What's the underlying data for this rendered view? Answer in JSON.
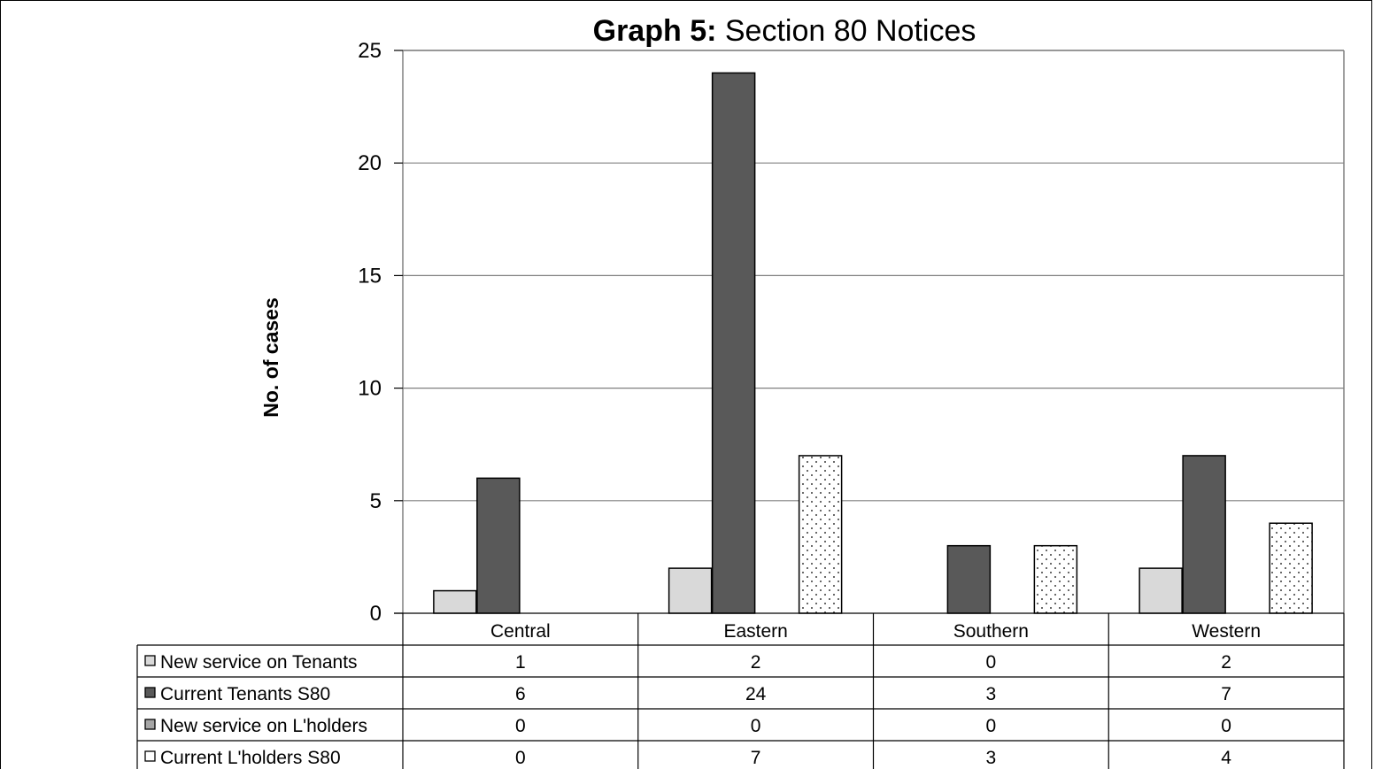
{
  "chart_data": {
    "type": "bar",
    "title_bold": "Graph 5:",
    "title_rest": " Section 80 Notices",
    "ylabel": "No. of cases",
    "ylim": [
      0,
      25
    ],
    "yticks": [
      "0",
      "5",
      "10",
      "15",
      "20",
      "25"
    ],
    "grid": true,
    "legend": "data-table",
    "categories": [
      "Central",
      "Eastern",
      "Southern",
      "Western"
    ],
    "series": [
      {
        "name": "New service on Tenants",
        "values": [
          1,
          2,
          0,
          2
        ],
        "color": "#d9d9d9",
        "pattern": "solid"
      },
      {
        "name": "Current Tenants S80",
        "values": [
          6,
          24,
          3,
          7
        ],
        "color": "#595959",
        "pattern": "solid"
      },
      {
        "name": "New service on L'holders",
        "values": [
          0,
          0,
          0,
          0
        ],
        "color": "#a6a6a6",
        "pattern": "solid"
      },
      {
        "name": "Current L'holders S80",
        "values": [
          0,
          7,
          3,
          4
        ],
        "color": "#ffffff",
        "pattern": "dots"
      }
    ]
  }
}
